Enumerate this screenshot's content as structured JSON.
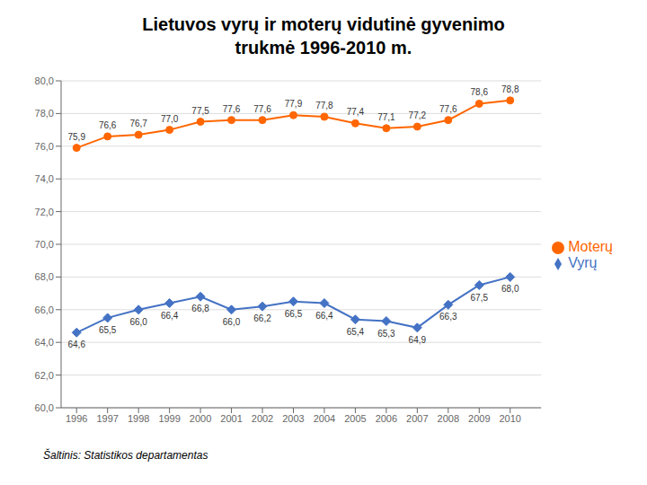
{
  "chart_data": {
    "type": "line",
    "title": "Lietuvos vyrų ir moterų vidutinė gyvenimo\ntrukmė 1996-2010 m.",
    "subtitle": "Šaltinis: Statistikos departamentas",
    "x": [
      1996,
      1997,
      1998,
      1999,
      2000,
      2001,
      2002,
      2003,
      2004,
      2005,
      2006,
      2007,
      2008,
      2009,
      2010
    ],
    "xlim": [
      1995.5,
      2011.0
    ],
    "xticks": [
      1996,
      1997,
      1998,
      1999,
      2000,
      2001,
      2002,
      2003,
      2004,
      2005,
      2006,
      2007,
      2008,
      2009,
      2010
    ],
    "ylim": [
      60.0,
      80.0
    ],
    "yticks": [
      {
        "value": 60.0,
        "label": "60,0"
      },
      {
        "value": 62.0,
        "label": "62,0"
      },
      {
        "value": 64.0,
        "label": "64,0"
      },
      {
        "value": 66.0,
        "label": "66,0"
      },
      {
        "value": 68.0,
        "label": "68,0"
      },
      {
        "value": 70.0,
        "label": "70,0"
      },
      {
        "value": 72.0,
        "label": "72,0"
      },
      {
        "value": 74.0,
        "label": "74,0"
      },
      {
        "value": 76.0,
        "label": "76,0"
      },
      {
        "value": 78.0,
        "label": "78,0"
      },
      {
        "value": 80.0,
        "label": "80,0"
      }
    ],
    "grid": true,
    "legend": "right",
    "data_labels": true,
    "series": [
      {
        "name": "Vyrų",
        "color": "#4472C4",
        "marker": "diamond",
        "values": [
          64.6,
          65.5,
          66.0,
          66.4,
          66.8,
          66.0,
          66.2,
          66.5,
          66.4,
          65.4,
          65.3,
          64.9,
          66.3,
          67.5,
          68.0
        ],
        "value_labels": [
          "64,6",
          "65,5",
          "66,0",
          "66,4",
          "66,8",
          "66,0",
          "66,2",
          "66,5",
          "66,4",
          "65,4",
          "65,3",
          "64,9",
          "66,3",
          "67,5",
          "68,0"
        ]
      },
      {
        "name": "Moterų",
        "color": "#FF6600",
        "marker": "circle",
        "values": [
          75.9,
          76.6,
          76.7,
          77.0,
          77.5,
          77.6,
          77.6,
          77.9,
          77.8,
          77.4,
          77.1,
          77.2,
          77.6,
          78.6,
          78.8
        ],
        "value_labels": [
          "75,9",
          "76,6",
          "76,7",
          "77,0",
          "77,5",
          "77,6",
          "77,6",
          "77,9",
          "77,8",
          "77,4",
          "77,1",
          "77,2",
          "77,6",
          "78,6",
          "78,8"
        ]
      }
    ]
  }
}
